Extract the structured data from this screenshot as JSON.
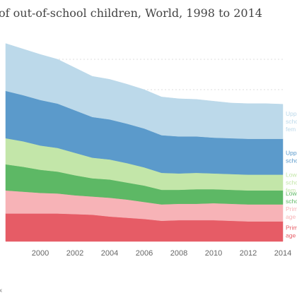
{
  "chart_data": {
    "type": "area",
    "stacked": true,
    "title": "of out-of-school children, World, 1998 to 2014",
    "x": [
      1998,
      1999,
      2000,
      2001,
      2002,
      2003,
      2004,
      2005,
      2006,
      2007,
      2008,
      2009,
      2010,
      2011,
      2012,
      2013,
      2014
    ],
    "x_ticks": [
      "2000",
      "2002",
      "2004",
      "2006",
      "2008",
      "2010",
      "2012",
      "2014"
    ],
    "grid": true,
    "series": [
      {
        "name": "Prim age",
        "legend_lines": [
          "Prim",
          "age"
        ],
        "color": "#e65c66",
        "values": [
          46,
          46,
          46,
          46,
          45,
          44,
          41,
          39,
          37,
          34,
          35,
          35,
          35,
          34,
          33,
          33,
          33
        ]
      },
      {
        "name": "Prim age",
        "legend_lines": [
          "Prim",
          "age"
        ],
        "color": "#f7b3b7",
        "values": [
          38,
          36,
          34,
          33,
          31,
          30,
          31,
          30,
          28,
          27,
          27,
          27,
          28,
          28,
          28,
          28,
          28
        ]
      },
      {
        "name": "Low scho",
        "legend_lines": [
          "Low",
          "scho"
        ],
        "color": "#5db865",
        "values": [
          43,
          41,
          38,
          36,
          33,
          30,
          30,
          28,
          27,
          24,
          23,
          24,
          23,
          23,
          23,
          23,
          23
        ]
      },
      {
        "name": "Low scho fem",
        "legend_lines": [
          "Low",
          "scho",
          "fem"
        ],
        "color": "#c3e6a9",
        "values": [
          43,
          42,
          40,
          39,
          37,
          34,
          33,
          32,
          30,
          28,
          27,
          27,
          26,
          26,
          26,
          26,
          26
        ]
      },
      {
        "name": "Upp scho",
        "legend_lines": [
          "Upp",
          "scho"
        ],
        "color": "#5b9acb",
        "values": [
          78,
          76,
          75,
          73,
          70,
          67,
          66,
          65,
          64,
          62,
          61,
          60,
          59,
          59,
          59,
          59,
          59
        ]
      },
      {
        "name": "Upp scho fem",
        "legend_lines": [
          "Upp",
          "scho",
          "fem"
        ],
        "color": "#bcd9ea",
        "values": [
          78,
          76,
          75,
          73,
          70,
          67,
          66,
          65,
          64,
          63,
          62,
          61,
          60,
          58,
          58,
          58,
          57
        ]
      }
    ],
    "source_fragment": "x"
  }
}
